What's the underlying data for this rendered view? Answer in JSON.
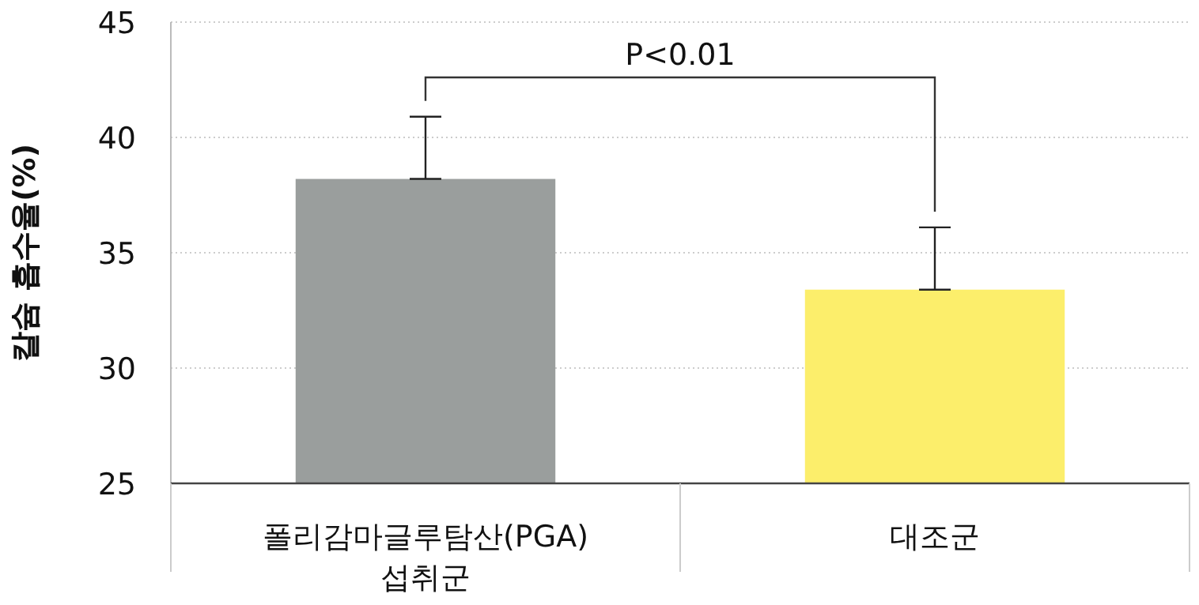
{
  "chart_data": {
    "type": "bar",
    "ylabel": "칼슘 흡수율(%)",
    "categories": [
      "폴리감마글루탐산(PGA) 섭취군",
      "대조군"
    ],
    "values": [
      38.2,
      33.4
    ],
    "colors": [
      "#9a9e9d",
      "#fcee6b"
    ],
    "errors": [
      [
        38.2,
        40.9
      ],
      [
        33.4,
        36.1
      ]
    ],
    "ylim": [
      25,
      45
    ],
    "yticks": [
      25,
      30,
      35,
      40,
      45
    ],
    "grid": "y",
    "annotations": [
      "P<0.01"
    ]
  }
}
